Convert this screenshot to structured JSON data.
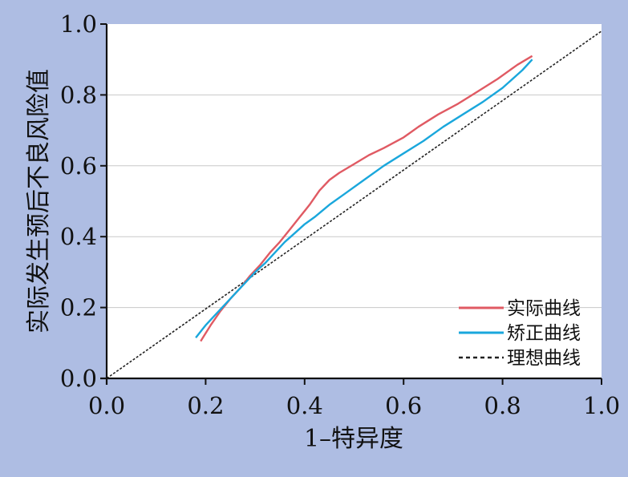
{
  "colors": {
    "background": "#aebde3",
    "plot_background": "#ffffff",
    "grid": "#c8c8c8",
    "axis": "#111111"
  },
  "chart_data": {
    "type": "line",
    "title": "",
    "xlabel": "1–特异度",
    "ylabel": "实际发生预后不良风险值",
    "xlim": [
      0,
      1
    ],
    "ylim": [
      0,
      1
    ],
    "x_ticks": [
      "0.0",
      "0.2",
      "0.4",
      "0.6",
      "0.8",
      "1.0"
    ],
    "y_ticks": [
      "0.0",
      "0.2",
      "0.4",
      "0.6",
      "0.8",
      "1.0"
    ],
    "grid": "horizontal",
    "legend_position": "bottom-right",
    "series": [
      {
        "name": "实际曲线",
        "color": "#e05a63",
        "dash": "solid",
        "x": [
          0.19,
          0.21,
          0.23,
          0.25,
          0.27,
          0.29,
          0.31,
          0.33,
          0.35,
          0.37,
          0.39,
          0.41,
          0.43,
          0.45,
          0.47,
          0.5,
          0.53,
          0.56,
          0.6,
          0.63,
          0.67,
          0.71,
          0.75,
          0.79,
          0.83,
          0.86
        ],
        "y": [
          0.105,
          0.15,
          0.19,
          0.225,
          0.255,
          0.29,
          0.32,
          0.355,
          0.385,
          0.42,
          0.455,
          0.49,
          0.53,
          0.56,
          0.58,
          0.605,
          0.63,
          0.65,
          0.68,
          0.71,
          0.745,
          0.775,
          0.81,
          0.845,
          0.885,
          0.91
        ]
      },
      {
        "name": "矫正曲线",
        "color": "#1aa7dc",
        "dash": "solid",
        "x": [
          0.18,
          0.2,
          0.22,
          0.24,
          0.26,
          0.28,
          0.3,
          0.32,
          0.34,
          0.36,
          0.38,
          0.4,
          0.42,
          0.45,
          0.48,
          0.52,
          0.56,
          0.6,
          0.64,
          0.68,
          0.72,
          0.76,
          0.8,
          0.84,
          0.86
        ],
        "y": [
          0.115,
          0.15,
          0.18,
          0.21,
          0.24,
          0.27,
          0.3,
          0.325,
          0.355,
          0.385,
          0.41,
          0.435,
          0.455,
          0.49,
          0.52,
          0.56,
          0.6,
          0.635,
          0.67,
          0.71,
          0.745,
          0.78,
          0.82,
          0.87,
          0.9
        ]
      },
      {
        "name": "理想曲线",
        "color": "#222222",
        "dash": "dashed",
        "x": [
          0,
          1
        ],
        "y": [
          0,
          0.98
        ]
      }
    ]
  }
}
